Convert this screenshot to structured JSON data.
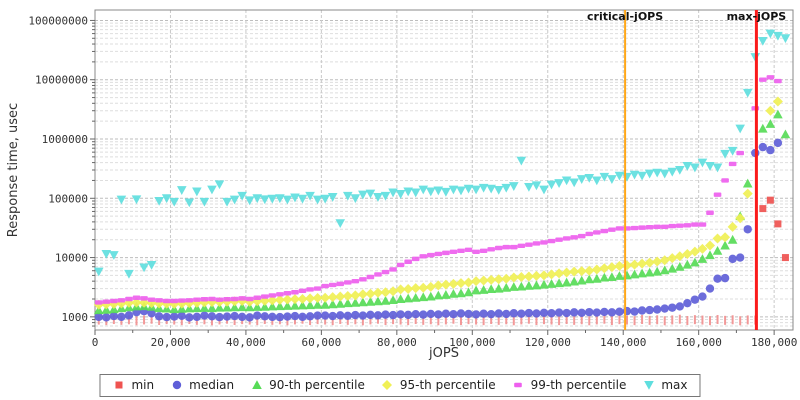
{
  "chart_data": {
    "type": "scatter",
    "title": "",
    "xlabel": "jOPS",
    "ylabel": "Response time, usec",
    "legend_position": "bottom-center",
    "grid": true,
    "axes": {
      "x": {
        "label": "jOPS",
        "min": 0,
        "max": 185000,
        "major_ticks": [
          0,
          20000,
          40000,
          60000,
          80000,
          100000,
          120000,
          140000,
          160000,
          180000
        ],
        "tick_labels": [
          "0",
          "20,000",
          "40,000",
          "60,000",
          "80,000",
          "100,000",
          "120,000",
          "140,000",
          "160,000",
          "180,000"
        ],
        "minor_step": 10000
      },
      "y": {
        "label": "Response time, usec",
        "scale": "log",
        "min": 600,
        "max": 150000000,
        "ticks": [
          1000,
          10000,
          100000,
          1000000,
          10000000,
          100000000
        ],
        "tick_labels": [
          "1000",
          "10000",
          "100000",
          "1000000",
          "10000000",
          "100000000"
        ]
      }
    },
    "annotations": [
      {
        "id": "critical-jops",
        "label": "critical-jOPS",
        "x": 140500,
        "color": "#ffa718",
        "width": 2
      },
      {
        "id": "max-jops",
        "label": "max-jOPS",
        "x": 175300,
        "color": "#fb1b1b",
        "width": 3
      }
    ],
    "x": [
      1000,
      3000,
      5000,
      7000,
      9000,
      11000,
      13000,
      15000,
      17000,
      19000,
      21000,
      23000,
      25000,
      27000,
      29000,
      31000,
      33000,
      35000,
      37000,
      39000,
      41000,
      43000,
      45000,
      47000,
      49000,
      51000,
      53000,
      55000,
      57000,
      59000,
      61000,
      63000,
      65000,
      67000,
      69000,
      71000,
      73000,
      75000,
      77000,
      79000,
      81000,
      83000,
      85000,
      87000,
      89000,
      91000,
      93000,
      95000,
      97000,
      99000,
      101000,
      103000,
      105000,
      107000,
      109000,
      111000,
      113000,
      115000,
      117000,
      119000,
      121000,
      123000,
      125000,
      127000,
      129000,
      131000,
      133000,
      135000,
      137000,
      139000,
      141000,
      143000,
      145000,
      147000,
      149000,
      151000,
      153000,
      155000,
      157000,
      159000,
      161000,
      163000,
      165000,
      167000,
      169000,
      171000,
      173000,
      175000,
      177000,
      179000,
      181000,
      183000
    ],
    "series": [
      {
        "id": "min",
        "name": "min",
        "color": "#ef5350",
        "tick_color": "#f29090",
        "marker": "tick",
        "legend_marker": "square",
        "values": [
          900,
          880,
          920,
          890,
          910,
          875,
          905,
          930,
          885,
          915,
          900,
          880,
          920,
          890,
          910,
          875,
          905,
          930,
          885,
          915,
          900,
          880,
          920,
          890,
          910,
          875,
          905,
          930,
          885,
          915,
          900,
          880,
          920,
          890,
          910,
          875,
          905,
          930,
          885,
          915,
          900,
          880,
          920,
          890,
          910,
          875,
          905,
          930,
          885,
          915,
          900,
          880,
          920,
          890,
          910,
          875,
          905,
          930,
          885,
          915,
          900,
          880,
          920,
          890,
          910,
          875,
          905,
          930,
          885,
          915,
          900,
          880,
          920,
          890,
          910,
          875,
          905,
          930,
          885,
          915,
          900,
          880,
          920,
          890,
          910,
          875,
          905,
          900,
          67000,
          93000,
          37000,
          10000
        ]
      },
      {
        "id": "median",
        "name": "median",
        "color": "#5f5fd8",
        "marker": "circle",
        "values": [
          1000,
          980,
          1030,
          1000,
          1060,
          1200,
          1250,
          1150,
          1020,
          990,
          1010,
          1040,
          980,
          1000,
          1050,
          1020,
          990,
          1010,
          1030,
          1000,
          980,
          1050,
          1020,
          1000,
          990,
          1010,
          1030,
          1000,
          1020,
          1050,
          1050,
          1030,
          1060,
          1040,
          1070,
          1050,
          1080,
          1060,
          1090,
          1070,
          1100,
          1080,
          1110,
          1090,
          1120,
          1100,
          1130,
          1110,
          1140,
          1120,
          1100,
          1130,
          1110,
          1140,
          1120,
          1150,
          1130,
          1160,
          1140,
          1170,
          1150,
          1180,
          1160,
          1190,
          1170,
          1200,
          1180,
          1210,
          1190,
          1220,
          1250,
          1230,
          1280,
          1300,
          1330,
          1380,
          1430,
          1500,
          1700,
          1950,
          2200,
          3000,
          4400,
          4500,
          9500,
          10000,
          30000,
          580000,
          730000,
          650000,
          860000,
          null
        ]
      },
      {
        "id": "p90",
        "name": "90-th percentile",
        "color": "#57db57",
        "marker": "triangle-up",
        "values": [
          1300,
          1320,
          1350,
          1400,
          1450,
          1500,
          1520,
          1480,
          1400,
          1380,
          1350,
          1370,
          1390,
          1400,
          1420,
          1400,
          1430,
          1440,
          1450,
          1460,
          1450,
          1470,
          1480,
          1500,
          1520,
          1530,
          1550,
          1560,
          1580,
          1600,
          1600,
          1630,
          1660,
          1700,
          1730,
          1760,
          1800,
          1830,
          1870,
          1920,
          2000,
          2050,
          2100,
          2150,
          2200,
          2300,
          2350,
          2450,
          2500,
          2600,
          2800,
          2850,
          2950,
          3000,
          3100,
          3200,
          3250,
          3350,
          3400,
          3500,
          3600,
          3700,
          3800,
          3950,
          4100,
          4300,
          4400,
          4600,
          4700,
          4900,
          5000,
          5200,
          5400,
          5600,
          5800,
          6100,
          6500,
          7000,
          7600,
          8300,
          9500,
          11000,
          13000,
          16000,
          20000,
          50000,
          178000,
          null,
          1500000,
          1800000,
          2600000,
          1200000
        ]
      },
      {
        "id": "p95",
        "name": "95-th percentile",
        "color": "#f0f055",
        "marker": "diamond",
        "values": [
          1600,
          1620,
          1650,
          1680,
          1720,
          1750,
          1730,
          1700,
          1680,
          1660,
          1650,
          1670,
          1700,
          1720,
          1750,
          1770,
          1780,
          1800,
          1820,
          1850,
          1800,
          1830,
          1860,
          1900,
          1930,
          1960,
          1990,
          2000,
          2050,
          2080,
          2100,
          2150,
          2200,
          2250,
          2300,
          2400,
          2450,
          2550,
          2600,
          2700,
          2900,
          2950,
          3050,
          3100,
          3200,
          3400,
          3500,
          3600,
          3700,
          3800,
          4000,
          4100,
          4200,
          4300,
          4400,
          4600,
          4700,
          4800,
          4900,
          5000,
          5200,
          5400,
          5600,
          5800,
          5900,
          6000,
          6300,
          6600,
          6900,
          7200,
          7400,
          7600,
          7900,
          8200,
          8600,
          9000,
          9800,
          10500,
          11500,
          12600,
          14000,
          16000,
          21000,
          22000,
          33000,
          46000,
          120000,
          null,
          null,
          3000000,
          4300000,
          null
        ]
      },
      {
        "id": "p99",
        "name": "99-th percentile",
        "color": "#ee5fee",
        "marker": "hbar",
        "values": [
          1750,
          1800,
          1850,
          1900,
          2000,
          2100,
          2050,
          1950,
          1900,
          1850,
          1850,
          1880,
          1900,
          1950,
          1980,
          2000,
          1950,
          1980,
          2000,
          2050,
          2000,
          2100,
          2200,
          2300,
          2400,
          2500,
          2600,
          2750,
          2900,
          3000,
          3300,
          3450,
          3600,
          3800,
          4000,
          4300,
          4700,
          5200,
          5700,
          6300,
          7500,
          8500,
          9500,
          10500,
          11000,
          11500,
          12000,
          12500,
          13000,
          13500,
          12500,
          13000,
          13800,
          14500,
          15000,
          15000,
          15800,
          16500,
          17300,
          18000,
          19000,
          20000,
          21000,
          22000,
          23000,
          25000,
          26500,
          28000,
          29500,
          31000,
          31000,
          31500,
          32000,
          32500,
          33000,
          33000,
          34000,
          34500,
          35000,
          36000,
          36000,
          57000,
          115000,
          200000,
          380000,
          580000,
          null,
          3300000,
          10000000,
          11000000,
          9500000,
          null
        ]
      },
      {
        "id": "max",
        "name": "max",
        "color": "#5fdede",
        "marker": "triangle-down",
        "values": [
          5800,
          11500,
          11000,
          95000,
          5300,
          96000,
          6800,
          7500,
          90000,
          100000,
          87000,
          137000,
          85000,
          130000,
          87000,
          140000,
          172000,
          87000,
          95000,
          110000,
          92000,
          100000,
          96000,
          98000,
          100000,
          95000,
          103000,
          98000,
          110000,
          95000,
          98000,
          105000,
          38000,
          110000,
          100000,
          115000,
          120000,
          105000,
          110000,
          125000,
          118000,
          130000,
          125000,
          140000,
          130000,
          135000,
          128000,
          140000,
          135000,
          145000,
          140000,
          150000,
          145000,
          138000,
          150000,
          160000,
          430000,
          155000,
          165000,
          140000,
          170000,
          180000,
          200000,
          185000,
          210000,
          220000,
          200000,
          230000,
          210000,
          240000,
          230000,
          250000,
          240000,
          260000,
          270000,
          260000,
          280000,
          300000,
          350000,
          330000,
          400000,
          350000,
          330000,
          560000,
          630000,
          1500000,
          6000000,
          24000000,
          45000000,
          60000000,
          55000000,
          50000000
        ]
      }
    ]
  }
}
